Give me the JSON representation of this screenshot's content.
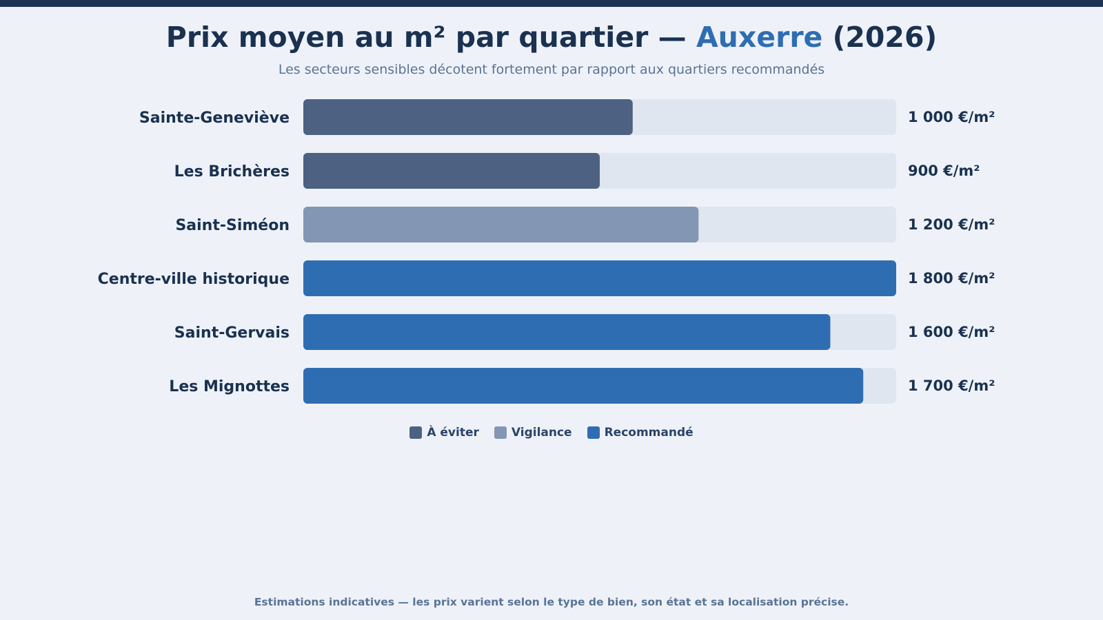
{
  "title": {
    "prefix": "Prix moyen au m² par quartier — ",
    "city": "Auxerre",
    "suffix": " (2026)"
  },
  "subtitle": "Les secteurs sensibles décotent fortement par rapport aux quartiers recommandés",
  "colors": {
    "avoid": "#4d6282",
    "caution": "#8396b3",
    "recommended": "#2f6db3",
    "track": "#dfe6f0",
    "label": "#1a3150"
  },
  "chart_data": {
    "type": "bar",
    "orientation": "horizontal",
    "categories": [
      "Sainte-Geneviève",
      "Les Brichères",
      "Saint-Siméon",
      "Centre-ville historique",
      "Saint-Gervais",
      "Les Mignottes"
    ],
    "values": [
      1000,
      900,
      1200,
      1800,
      1600,
      1700
    ],
    "value_labels": [
      "1 000 €/m²",
      "900 €/m²",
      "1 200 €/m²",
      "1 800 €/m²",
      "1 600 €/m²",
      "1 700 €/m²"
    ],
    "status": [
      "avoid",
      "avoid",
      "caution",
      "recommended",
      "recommended",
      "recommended"
    ],
    "xlim": [
      0,
      1800
    ],
    "grid": false,
    "legend_position": "bottom-center"
  },
  "legend": [
    {
      "key": "avoid",
      "label": "À éviter"
    },
    {
      "key": "caution",
      "label": "Vigilance"
    },
    {
      "key": "recommended",
      "label": "Recommandé"
    }
  ],
  "footnote": "Estimations indicatives — les prix varient selon le type de bien, son état et sa localisation précise."
}
